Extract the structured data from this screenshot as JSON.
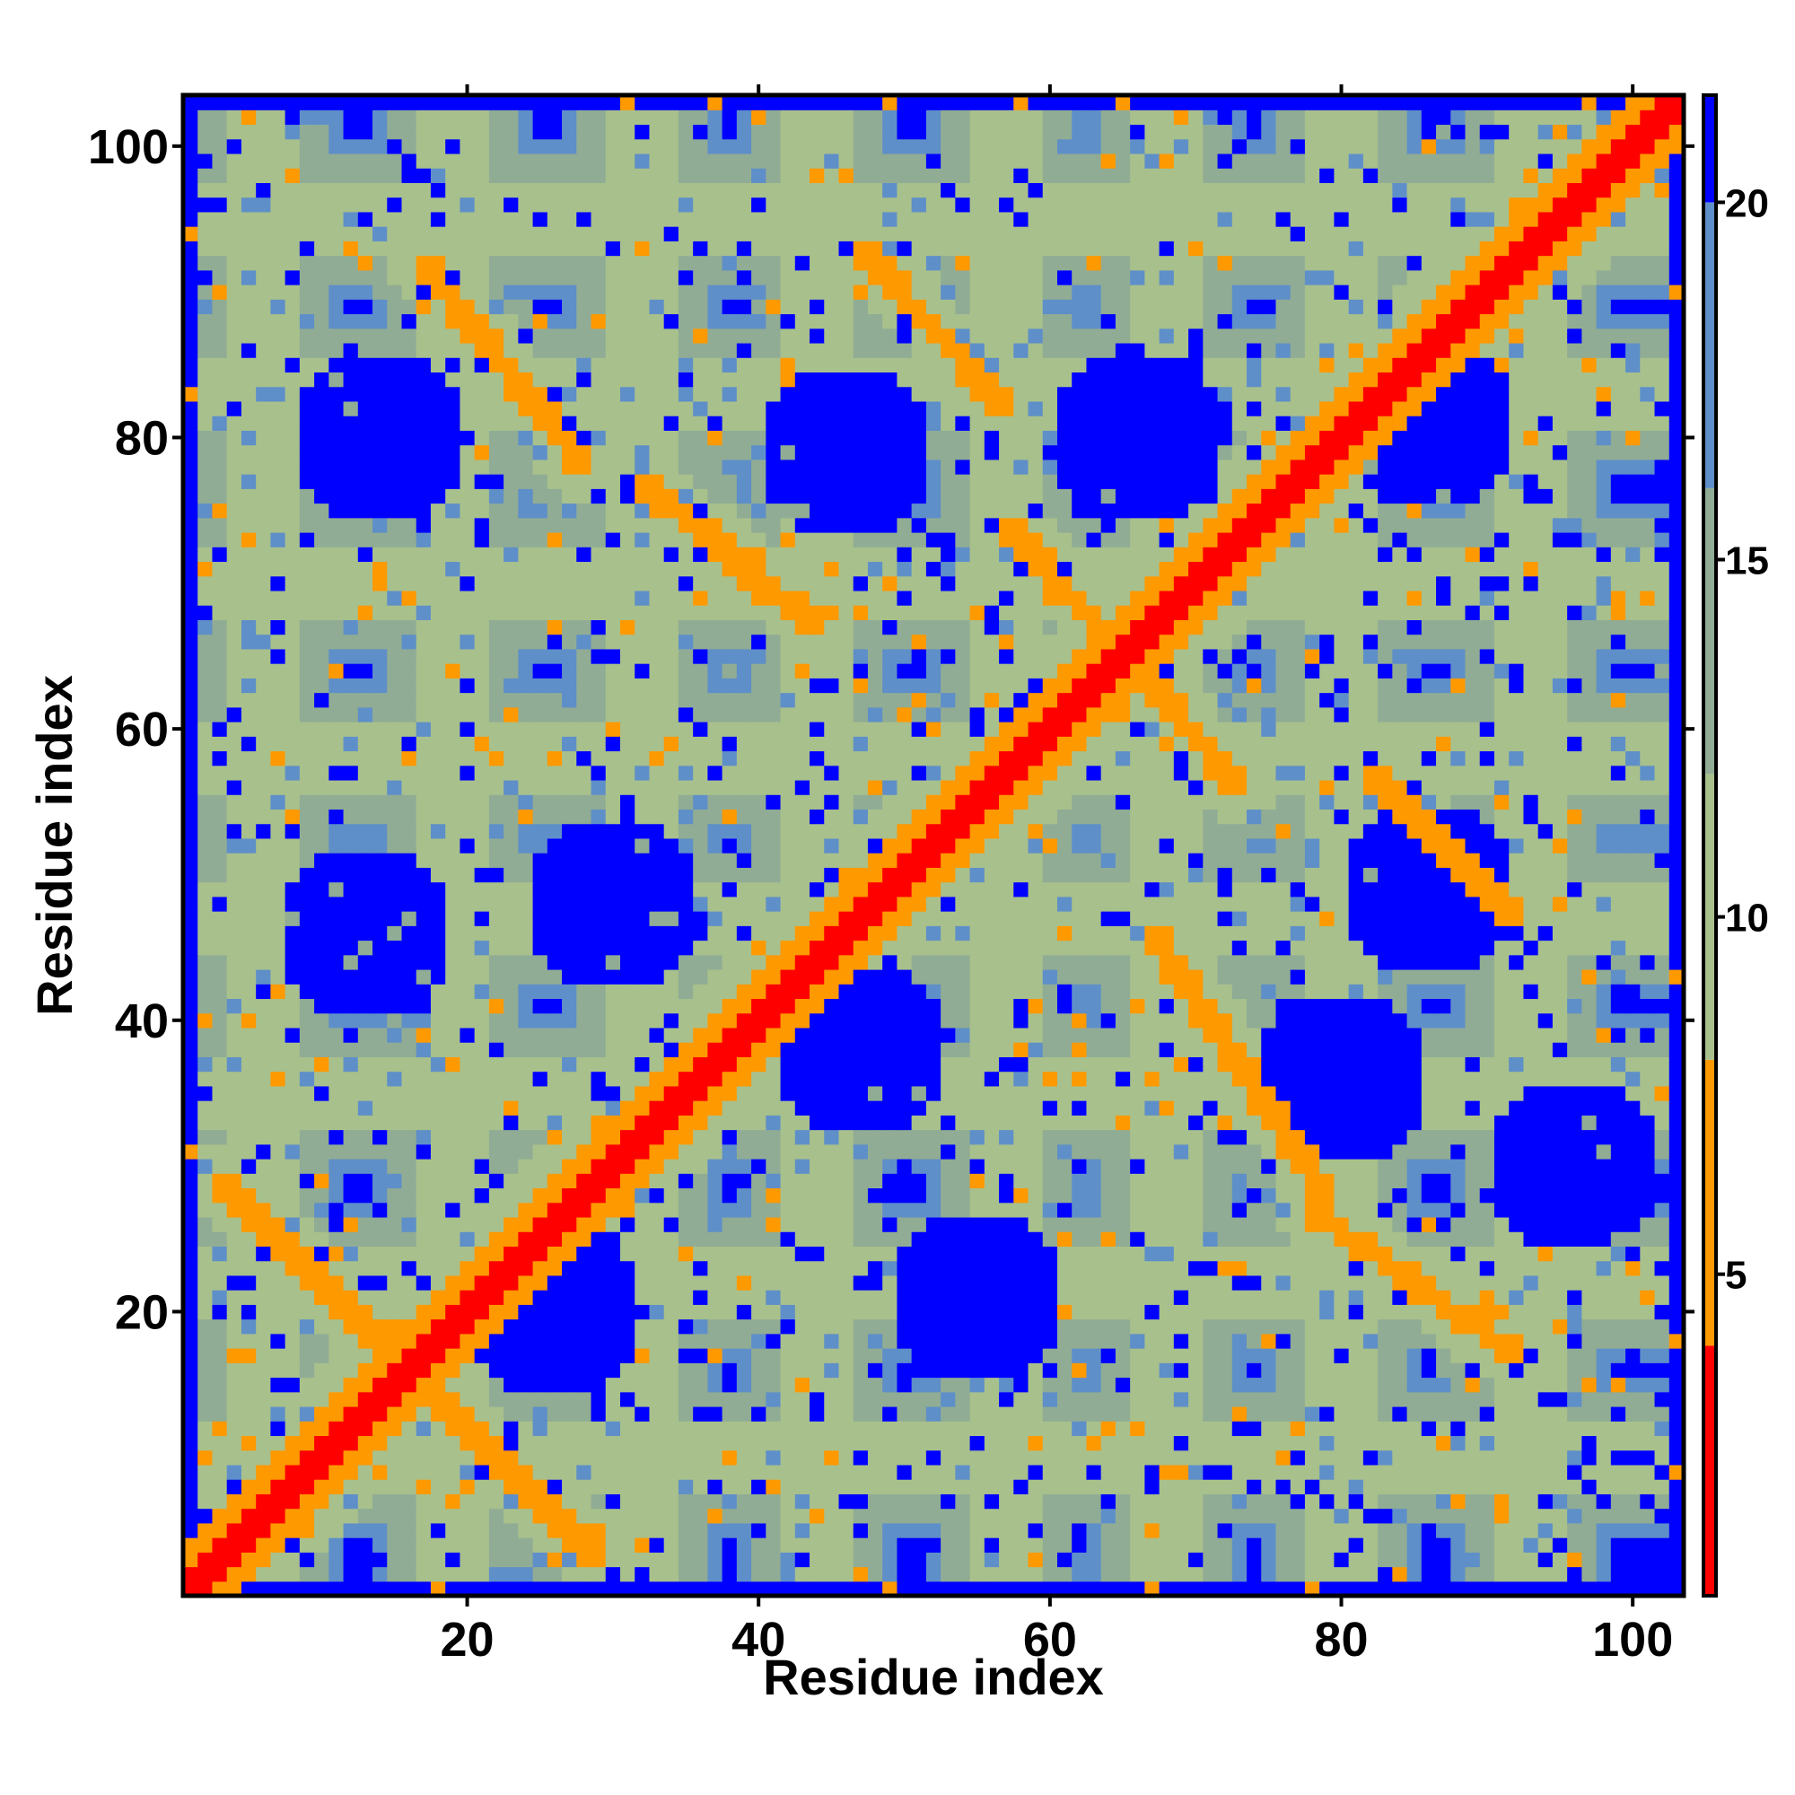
{
  "chart_data": {
    "type": "heatmap",
    "title": "",
    "xlabel": "Residue index",
    "ylabel": "Residue index",
    "n_residues": 103,
    "xlim": [
      0.5,
      103.5
    ],
    "ylim": [
      0.5,
      103.5
    ],
    "x_ticks": [
      20,
      40,
      60,
      80,
      100
    ],
    "y_ticks": [
      20,
      40,
      60,
      80,
      100
    ],
    "colorbar": {
      "range": [
        0.5,
        21.5
      ],
      "ticks": [
        5,
        10,
        15,
        20
      ],
      "bins": [
        {
          "max": 4,
          "color": "#ff0000"
        },
        {
          "max": 8,
          "color": "#ff9900"
        },
        {
          "max": 12,
          "color": "#a8c08c"
        },
        {
          "max": 16,
          "color": "#90ac94"
        },
        {
          "max": 20,
          "color": "#5f8fc8"
        },
        {
          "max": 999,
          "color": "#0000ff"
        }
      ]
    },
    "bands": {
      "main_diagonal": {
        "start": [
          1,
          1
        ],
        "end": [
          103,
          103
        ]
      },
      "antiparallel_segments": [
        {
          "from": [
            3,
            29
          ],
          "to": [
            15,
            17
          ]
        },
        {
          "from": [
            17,
            15
          ],
          "to": [
            29,
            3
          ]
        },
        {
          "from": [
            17,
            92
          ],
          "to": [
            28,
            78
          ]
        },
        {
          "from": [
            32,
            77
          ],
          "to": [
            44,
            67
          ]
        },
        {
          "from": [
            47,
            93
          ],
          "to": [
            57,
            82
          ]
        },
        {
          "from": [
            57,
            74
          ],
          "to": [
            66,
            64
          ]
        },
        {
          "from": [
            67,
            46
          ],
          "to": [
            79,
            28
          ]
        },
        {
          "from": [
            78,
            27
          ],
          "to": [
            92,
            17
          ]
        },
        {
          "from": [
            67,
            63
          ],
          "to": [
            73,
            56
          ]
        },
        {
          "from": [
            82,
            57
          ],
          "to": [
            92,
            47
          ]
        }
      ],
      "cross_lattice_x": [
        6,
        19,
        32,
        44,
        57,
        68,
        80,
        93
      ],
      "cross_lattice_y": [
        10,
        22,
        35,
        47,
        58,
        70,
        83,
        95
      ],
      "empty_pockets": [
        [
          14,
          80
        ],
        [
          46,
          79
        ],
        [
          66,
          80
        ],
        [
          86,
          81
        ],
        [
          13,
          46
        ],
        [
          30,
          48
        ],
        [
          47,
          38
        ],
        [
          86,
          49
        ],
        [
          26,
          20
        ],
        [
          55,
          21
        ],
        [
          80,
          36
        ],
        [
          96,
          30
        ]
      ]
    }
  }
}
